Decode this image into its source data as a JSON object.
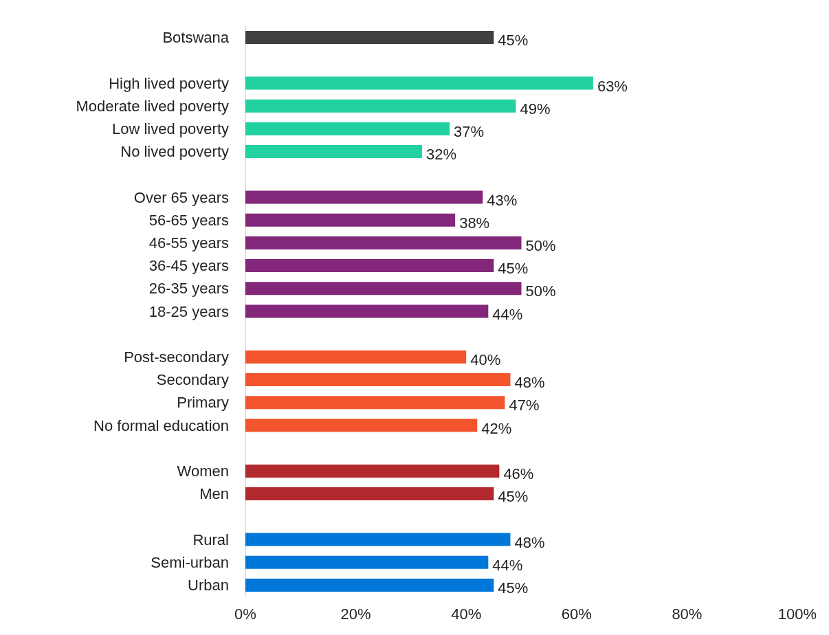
{
  "chart_data": {
    "type": "bar",
    "orientation": "horizontal",
    "categories": [
      "Botswana",
      null,
      "High lived poverty",
      "Moderate lived poverty",
      "Low lived poverty",
      "No lived poverty",
      null,
      "Over 65 years",
      "56-65 years",
      "46-55 years",
      "36-45 years",
      "26-35 years",
      "18-25 years",
      null,
      "Post-secondary",
      "Secondary",
      "Primary",
      "No formal education",
      null,
      "Women",
      "Men",
      null,
      "Rural",
      "Semi-urban",
      "Urban"
    ],
    "values": [
      45,
      null,
      63,
      49,
      37,
      32,
      null,
      43,
      38,
      50,
      45,
      50,
      44,
      null,
      40,
      48,
      47,
      42,
      null,
      46,
      45,
      null,
      48,
      44,
      45
    ],
    "value_labels": [
      "45%",
      null,
      "63%",
      "49%",
      "37%",
      "32%",
      null,
      "43%",
      "38%",
      "50%",
      "45%",
      "50%",
      "44%",
      null,
      "40%",
      "48%",
      "47%",
      "42%",
      null,
      "46%",
      "45%",
      null,
      "48%",
      "44%",
      "45%"
    ],
    "colors": [
      "#404040",
      null,
      "#21d19f",
      "#21d19f",
      "#21d19f",
      "#21d19f",
      null,
      "#83277a",
      "#83277a",
      "#83277a",
      "#83277a",
      "#83277a",
      "#83277a",
      null,
      "#f2552c",
      "#f2552c",
      "#f2552c",
      "#f2552c",
      null,
      "#b2292e",
      "#b2292e",
      null,
      "#0077d9",
      "#0077d9",
      "#0077d9"
    ],
    "xlim": [
      0,
      100
    ],
    "xticks": [
      {
        "value": 0,
        "label": "0%"
      },
      {
        "value": 20,
        "label": "20%"
      },
      {
        "value": 40,
        "label": "40%"
      },
      {
        "value": 60,
        "label": "60%"
      },
      {
        "value": 80,
        "label": "80%"
      },
      {
        "value": 100,
        "label": "100%"
      }
    ],
    "grid": false
  }
}
